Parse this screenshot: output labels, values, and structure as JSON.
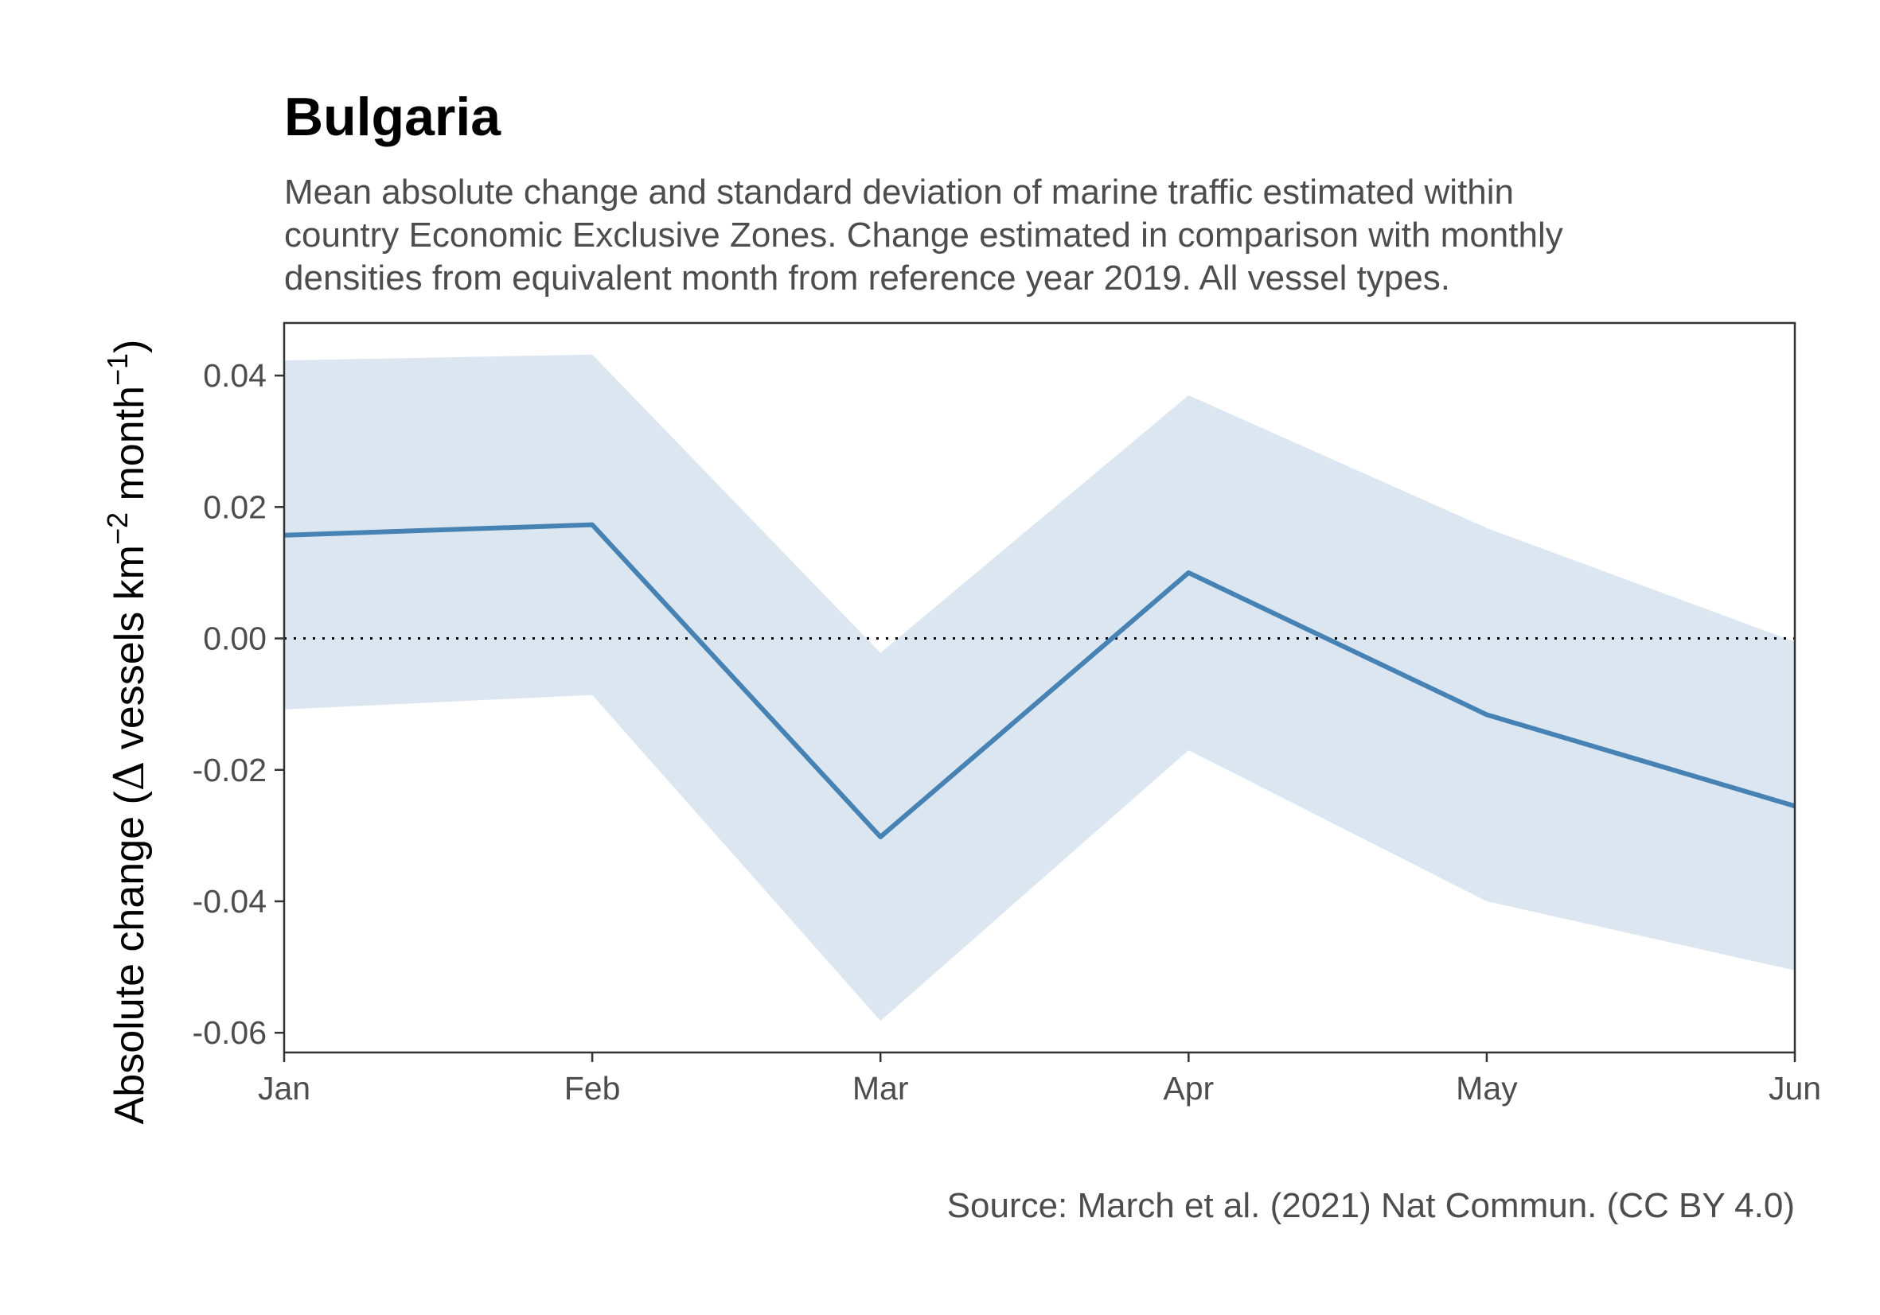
{
  "chart_data": {
    "type": "line",
    "title": "Bulgaria",
    "subtitle": [
      "Mean absolute change and standard deviation of marine traffic estimated within",
      "country Economic Exclusive Zones. Change estimated in comparison with monthly",
      "densities from equivalent month from reference year 2019. All vessel types."
    ],
    "ylabel": {
      "prefix": "Absolute change (",
      "delta": "Δ",
      "main1": " vessels km",
      "sup1": "−2",
      "main2": " month",
      "sup2": "−1",
      "suffix": ")"
    },
    "caption": "Source: March et al. (2021) Nat Commun. (CC BY 4.0)",
    "categories": [
      "Jan",
      "Feb",
      "Mar",
      "Apr",
      "May",
      "Jun"
    ],
    "x_days": [
      1,
      32,
      61,
      92,
      122,
      153
    ],
    "series": [
      {
        "values": [
          0.0157,
          0.0173,
          -0.0302,
          0.01,
          -0.0116,
          -0.0255
        ],
        "lower": [
          -0.0108,
          -0.0086,
          -0.0582,
          -0.017,
          -0.04,
          -0.0505
        ],
        "upper": [
          0.0423,
          0.0432,
          -0.0022,
          0.037,
          0.0168,
          -0.0005
        ],
        "color": "#4682b4",
        "band_color": "#dbe6f1"
      }
    ],
    "yticks": [
      0.04,
      0.02,
      0.0,
      -0.02,
      -0.04,
      -0.06
    ],
    "ytick_labels": [
      "0.04",
      "0.02",
      "0.00",
      "-0.02",
      "-0.04",
      "-0.06"
    ],
    "ylim": [
      -0.063,
      0.048
    ],
    "reference_line": {
      "y": 0,
      "style": "dotted",
      "color": "#000000"
    },
    "grid": false
  }
}
